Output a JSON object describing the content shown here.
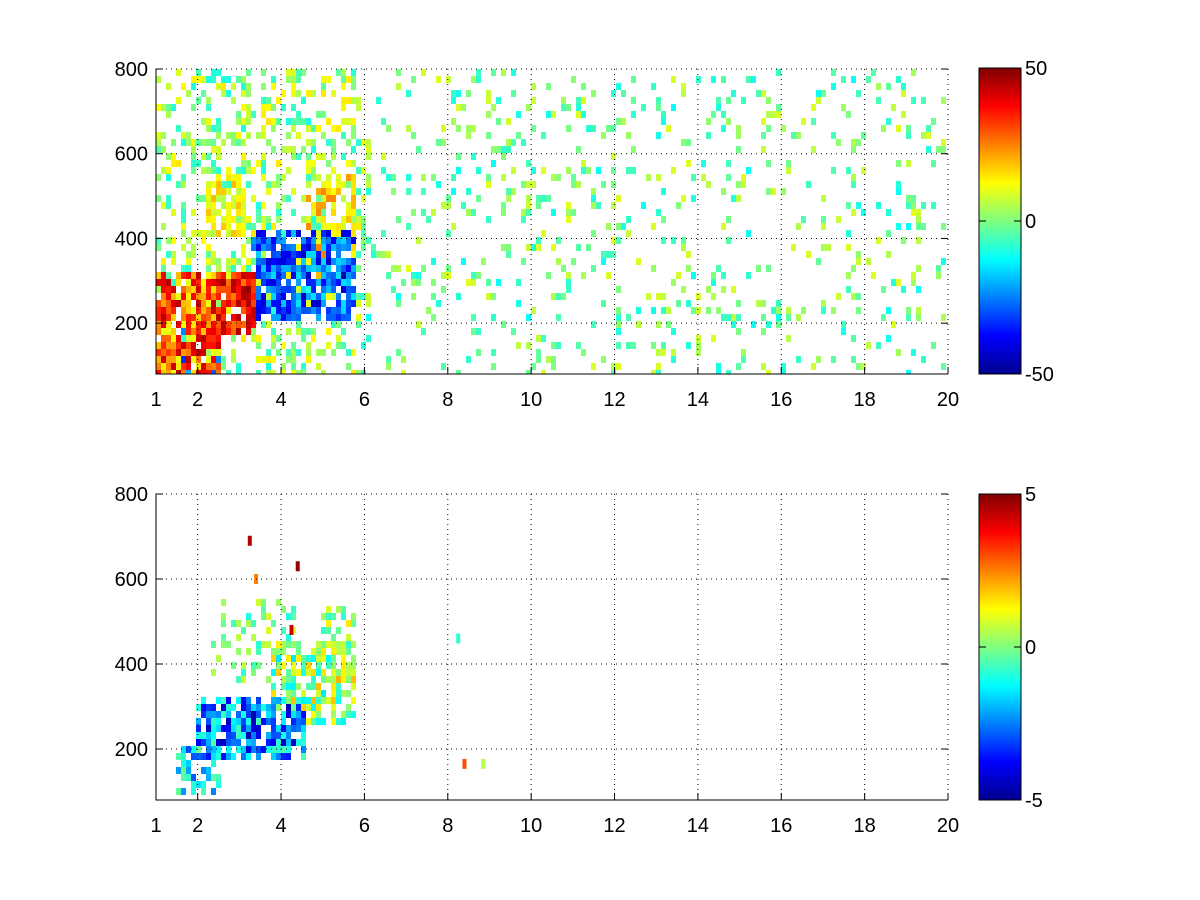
{
  "chart_data": [
    {
      "type": "heatmap",
      "title": "",
      "xlabel": "",
      "ylabel": "",
      "xlim": [
        1,
        20
      ],
      "ylim": [
        80,
        800
      ],
      "x_ticks": [
        "1",
        "2",
        "4",
        "6",
        "8",
        "10",
        "12",
        "14",
        "16",
        "18",
        "20"
      ],
      "x_tick_values": [
        1,
        2,
        4,
        6,
        8,
        10,
        12,
        14,
        16,
        18,
        20
      ],
      "y_ticks": [
        "200",
        "400",
        "600",
        "800"
      ],
      "y_tick_values": [
        200,
        400,
        600,
        800
      ],
      "grid": true,
      "colormap": "jet",
      "colorbar": {
        "min": -50,
        "max": 50,
        "ticks": [
          "50",
          "0",
          "-50"
        ],
        "tick_values": [
          50,
          0,
          -50
        ]
      },
      "regions": [
        {
          "x": [
            1.0,
            2.5
          ],
          "y": [
            80,
            320
          ],
          "value_range": [
            10,
            45
          ],
          "density": 0.8
        },
        {
          "x": [
            1.9,
            3.4
          ],
          "y": [
            180,
            320
          ],
          "value_range": [
            25,
            48
          ],
          "density": 0.85
        },
        {
          "x": [
            2.2,
            3.2
          ],
          "y": [
            400,
            560
          ],
          "value_range": [
            5,
            20
          ],
          "density": 0.6
        },
        {
          "x": [
            3.3,
            5.8
          ],
          "y": [
            200,
            420
          ],
          "value_range": [
            -45,
            -15
          ],
          "density": 0.8
        },
        {
          "x": [
            4.6,
            5.8
          ],
          "y": [
            300,
            560
          ],
          "value_range": [
            5,
            25
          ],
          "density": 0.55
        },
        {
          "x": [
            1.5,
            2.5
          ],
          "y": [
            80,
            200
          ],
          "value_range": [
            -35,
            -15
          ],
          "density": 0.5
        },
        {
          "x": [
            1.0,
            6.0
          ],
          "y": [
            80,
            800
          ],
          "value_range": [
            -10,
            15
          ],
          "density": 0.35
        },
        {
          "x": [
            6.0,
            20.0
          ],
          "y": [
            80,
            800
          ],
          "value_range": [
            -12,
            10
          ],
          "density": 0.12
        }
      ]
    },
    {
      "type": "heatmap",
      "title": "",
      "xlabel": "",
      "ylabel": "",
      "xlim": [
        1,
        20
      ],
      "ylim": [
        80,
        800
      ],
      "x_ticks": [
        "1",
        "2",
        "4",
        "6",
        "8",
        "10",
        "12",
        "14",
        "16",
        "18",
        "20"
      ],
      "x_tick_values": [
        1,
        2,
        4,
        6,
        8,
        10,
        12,
        14,
        16,
        18,
        20
      ],
      "y_ticks": [
        "200",
        "400",
        "600",
        "800"
      ],
      "y_tick_values": [
        200,
        400,
        600,
        800
      ],
      "grid": true,
      "colormap": "jet",
      "colorbar": {
        "min": -5,
        "max": 5,
        "ticks": [
          "5",
          "0",
          "-5"
        ],
        "tick_values": [
          5,
          0,
          -5
        ]
      },
      "regions": [
        {
          "x": [
            1.5,
            2.5
          ],
          "y": [
            100,
            200
          ],
          "value_range": [
            -3,
            0
          ],
          "density": 0.55
        },
        {
          "x": [
            2.0,
            4.6
          ],
          "y": [
            180,
            330
          ],
          "value_range": [
            -4.5,
            -0.5
          ],
          "density": 0.75
        },
        {
          "x": [
            3.8,
            5.8
          ],
          "y": [
            260,
            460
          ],
          "value_range": [
            -1.5,
            2
          ],
          "density": 0.6
        },
        {
          "x": [
            2.3,
            4.3
          ],
          "y": [
            350,
            560
          ],
          "value_range": [
            -1,
            1
          ],
          "density": 0.25
        },
        {
          "x": [
            4.9,
            5.8
          ],
          "y": [
            360,
            530
          ],
          "value_range": [
            -1,
            1.5
          ],
          "density": 0.5
        }
      ],
      "points": [
        {
          "x": 3.25,
          "y": 690,
          "value": 4.5
        },
        {
          "x": 3.4,
          "y": 600,
          "value": 2.5
        },
        {
          "x": 4.4,
          "y": 630,
          "value": 4.8
        },
        {
          "x": 4.25,
          "y": 480,
          "value": 4.2
        },
        {
          "x": 8.25,
          "y": 460,
          "value": -0.8
        },
        {
          "x": 8.4,
          "y": 165,
          "value": 3.0
        },
        {
          "x": 8.85,
          "y": 165,
          "value": 0.5
        }
      ]
    }
  ]
}
